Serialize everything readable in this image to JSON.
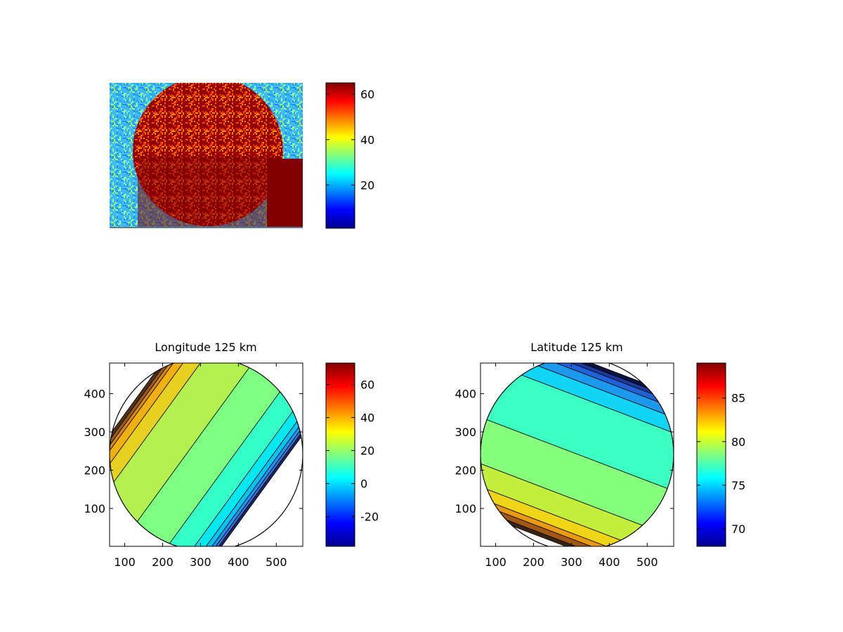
{
  "jet_colormap": [
    "#00008f",
    "#0000ff",
    "#0080ff",
    "#00ffff",
    "#80ff80",
    "#ffff00",
    "#ff8000",
    "#ff0000",
    "#800000"
  ],
  "chart_data": [
    {
      "type": "heatmap",
      "title": "",
      "description_colors": {
        "disk": "#8b0000",
        "background": "#3fb7f0"
      },
      "clim": [
        1,
        65
      ],
      "colorbar_ticks": [
        20,
        40,
        60
      ]
    },
    {
      "type": "heatmap",
      "title": "Longitude 125 km",
      "xlim": [
        60,
        570
      ],
      "ylim": [
        1,
        480
      ],
      "x_ticks": [
        100,
        200,
        300,
        400,
        500
      ],
      "y_ticks": [
        100,
        200,
        300,
        400
      ],
      "clim": [
        -38,
        73
      ],
      "colorbar_ticks": [
        -20,
        0,
        20,
        40,
        60
      ],
      "disk": {
        "center_x": 315,
        "center_y": 242,
        "radius": 255
      },
      "bands": [
        {
          "color": "#50321a",
          "value": 70
        },
        {
          "color": "#9a5a18",
          "value": 55
        },
        {
          "color": "#d98a10",
          "value": 45
        },
        {
          "color": "#f0b010",
          "value": 38
        },
        {
          "color": "#e8d020",
          "value": 30
        },
        {
          "color": "#b4f050",
          "value": 22
        },
        {
          "color": "#7dff82",
          "value": 14
        },
        {
          "color": "#35ffc8",
          "value": 6
        },
        {
          "color": "#00e8f0",
          "value": -2
        },
        {
          "color": "#00c4f4",
          "value": -10
        },
        {
          "color": "#1898f2",
          "value": -18
        },
        {
          "color": "#3a70d8",
          "value": -26
        },
        {
          "color": "#1a2868",
          "value": -34
        }
      ]
    },
    {
      "type": "heatmap",
      "title": "Latitude 125 km",
      "xlim": [
        60,
        570
      ],
      "ylim": [
        1,
        480
      ],
      "x_ticks": [
        100,
        200,
        300,
        400,
        500
      ],
      "y_ticks": [
        100,
        200,
        300,
        400
      ],
      "clim": [
        68,
        89
      ],
      "colorbar_ticks": [
        70,
        75,
        80,
        85
      ],
      "disk": {
        "center_x": 315,
        "center_y": 242,
        "radius": 255
      },
      "bands": [
        {
          "color": "#0a1240",
          "value": 68.5
        },
        {
          "color": "#1a3aa0",
          "value": 70
        },
        {
          "color": "#2060d8",
          "value": 71.5
        },
        {
          "color": "#1c98ec",
          "value": 73
        },
        {
          "color": "#12d4f4",
          "value": 74.5
        },
        {
          "color": "#3cffc4",
          "value": 76
        },
        {
          "color": "#86ff7c",
          "value": 77.5
        },
        {
          "color": "#c4ee3c",
          "value": 79
        },
        {
          "color": "#f0d418",
          "value": 80.5
        },
        {
          "color": "#e89a10",
          "value": 82
        },
        {
          "color": "#a05814",
          "value": 84
        },
        {
          "color": "#3a2410",
          "value": 86
        }
      ]
    }
  ]
}
